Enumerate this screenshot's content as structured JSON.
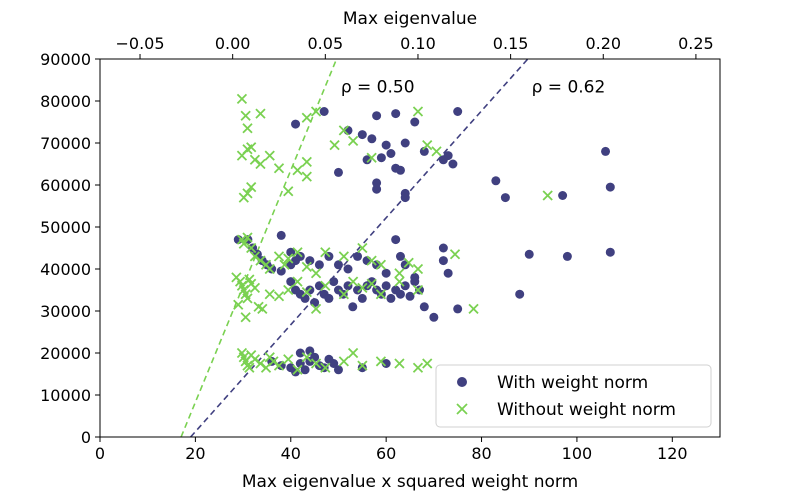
{
  "chart_data": {
    "type": "scatter",
    "xlabel": "Max eigenvalue x squared weight norm",
    "x2label": "Max eigenvalue",
    "ylabel": "",
    "xlim": [
      0,
      130
    ],
    "ylim": [
      0,
      90000
    ],
    "x2lim": [
      -0.0716,
      0.263
    ],
    "x_ticks": [
      0,
      20,
      40,
      60,
      80,
      100,
      120
    ],
    "x_tick_labels": [
      "0",
      "20",
      "40",
      "60",
      "80",
      "100",
      "120"
    ],
    "x2_ticks": [
      -0.05,
      0.0,
      0.05,
      0.1,
      0.15,
      0.2,
      0.25
    ],
    "x2_tick_labels": [
      "−0.05",
      "0.00",
      "0.05",
      "0.10",
      "0.15",
      "0.20",
      "0.25"
    ],
    "y_ticks": [
      0,
      10000,
      20000,
      30000,
      40000,
      50000,
      60000,
      70000,
      80000,
      90000
    ],
    "y_tick_labels": [
      "0",
      "10000",
      "20000",
      "30000",
      "40000",
      "50000",
      "60000",
      "70000",
      "80000",
      "90000"
    ],
    "legend_position": "bottom-right",
    "grid": false,
    "series": [
      {
        "name": "With weight norm",
        "marker": "circle",
        "color": "#404080",
        "axis": "bottom",
        "points": [
          [
            41,
            74500
          ],
          [
            47,
            77500
          ],
          [
            52,
            73000
          ],
          [
            58,
            76500
          ],
          [
            62,
            77000
          ],
          [
            66,
            75000
          ],
          [
            75,
            77500
          ],
          [
            55,
            72000
          ],
          [
            57,
            71000
          ],
          [
            60,
            69500
          ],
          [
            64,
            70000
          ],
          [
            68,
            68000
          ],
          [
            73,
            67000
          ],
          [
            56,
            66000
          ],
          [
            59,
            66500
          ],
          [
            61,
            67500
          ],
          [
            62,
            64000
          ],
          [
            63,
            63500
          ],
          [
            72,
            66000
          ],
          [
            74,
            65000
          ],
          [
            50,
            63000
          ],
          [
            58,
            60500
          ],
          [
            58,
            59000
          ],
          [
            64,
            58000
          ],
          [
            64,
            57000
          ],
          [
            83,
            61000
          ],
          [
            85,
            57000
          ],
          [
            97,
            57500
          ],
          [
            106,
            68000
          ],
          [
            107,
            59500
          ],
          [
            29,
            47000
          ],
          [
            31,
            47000
          ],
          [
            32,
            45000
          ],
          [
            33,
            43500
          ],
          [
            34,
            42000
          ],
          [
            35,
            41000
          ],
          [
            36,
            40000
          ],
          [
            38,
            48000
          ],
          [
            40,
            44000
          ],
          [
            41,
            42000
          ],
          [
            40,
            41000
          ],
          [
            38,
            39500
          ],
          [
            42,
            43000
          ],
          [
            44,
            42000
          ],
          [
            46,
            41000
          ],
          [
            48,
            43000
          ],
          [
            50,
            41000
          ],
          [
            52,
            40000
          ],
          [
            54,
            43000
          ],
          [
            56,
            42000
          ],
          [
            58,
            41000
          ],
          [
            60,
            39000
          ],
          [
            62,
            47000
          ],
          [
            63,
            43000
          ],
          [
            64,
            41000
          ],
          [
            66,
            38000
          ],
          [
            72,
            45000
          ],
          [
            72,
            42000
          ],
          [
            73,
            39000
          ],
          [
            90,
            43500
          ],
          [
            98,
            43000
          ],
          [
            107,
            44000
          ],
          [
            40,
            37000
          ],
          [
            41,
            35000
          ],
          [
            42,
            34000
          ],
          [
            43,
            33000
          ],
          [
            44,
            35000
          ],
          [
            45,
            32000
          ],
          [
            46,
            36000
          ],
          [
            47,
            34000
          ],
          [
            48,
            33000
          ],
          [
            49,
            37000
          ],
          [
            50,
            35000
          ],
          [
            51,
            34000
          ],
          [
            52,
            36000
          ],
          [
            53,
            31000
          ],
          [
            54,
            35000
          ],
          [
            55,
            33000
          ],
          [
            56,
            36000
          ],
          [
            57,
            37000
          ],
          [
            58,
            35000
          ],
          [
            59,
            34000
          ],
          [
            60,
            36000
          ],
          [
            61,
            33000
          ],
          [
            62,
            35000
          ],
          [
            63,
            34000
          ],
          [
            64,
            36000
          ],
          [
            65,
            33500
          ],
          [
            66,
            37000
          ],
          [
            67,
            35000
          ],
          [
            68,
            31000
          ],
          [
            70,
            28500
          ],
          [
            75,
            30500
          ],
          [
            88,
            34000
          ],
          [
            36,
            18000
          ],
          [
            38,
            17000
          ],
          [
            40,
            16500
          ],
          [
            41,
            15500
          ],
          [
            42,
            17500
          ],
          [
            43,
            16000
          ],
          [
            44,
            18000
          ],
          [
            45,
            19000
          ],
          [
            46,
            17000
          ],
          [
            47,
            16500
          ],
          [
            48,
            18500
          ],
          [
            49,
            17500
          ],
          [
            50,
            16000
          ],
          [
            55,
            16500
          ],
          [
            60,
            17500
          ],
          [
            42,
            20000
          ],
          [
            44,
            20500
          ]
        ]
      },
      {
        "name": "Without weight norm",
        "marker": "x",
        "color": "#7ad151",
        "axis": "top",
        "points": [
          [
            0.005,
            80500
          ],
          [
            0.007,
            76500
          ],
          [
            0.008,
            73500
          ],
          [
            0.015,
            77000
          ],
          [
            0.04,
            76000
          ],
          [
            0.045,
            77500
          ],
          [
            0.06,
            73000
          ],
          [
            0.065,
            70500
          ],
          [
            0.055,
            69500
          ],
          [
            0.1,
            77500
          ],
          [
            0.105,
            69500
          ],
          [
            0.11,
            68000
          ],
          [
            0.075,
            66500
          ],
          [
            0.005,
            67000
          ],
          [
            0.008,
            68500
          ],
          [
            0.01,
            69000
          ],
          [
            0.012,
            66000
          ],
          [
            0.015,
            65000
          ],
          [
            0.02,
            67000
          ],
          [
            0.025,
            64000
          ],
          [
            0.04,
            65500
          ],
          [
            0.035,
            63500
          ],
          [
            0.04,
            62000
          ],
          [
            0.03,
            58500
          ],
          [
            0.01,
            59500
          ],
          [
            0.008,
            58000
          ],
          [
            0.006,
            57000
          ],
          [
            0.17,
            57500
          ],
          [
            0.005,
            47000
          ],
          [
            0.006,
            46000
          ],
          [
            0.008,
            47500
          ],
          [
            0.01,
            45000
          ],
          [
            0.012,
            43000
          ],
          [
            0.015,
            42000
          ],
          [
            0.018,
            41000
          ],
          [
            0.02,
            40000
          ],
          [
            0.025,
            43000
          ],
          [
            0.028,
            41000
          ],
          [
            0.03,
            42500
          ],
          [
            0.035,
            44000
          ],
          [
            0.04,
            40500
          ],
          [
            0.045,
            39000
          ],
          [
            0.05,
            44000
          ],
          [
            0.06,
            43000
          ],
          [
            0.07,
            45000
          ],
          [
            0.075,
            42000
          ],
          [
            0.08,
            41000
          ],
          [
            0.09,
            39000
          ],
          [
            0.095,
            41500
          ],
          [
            0.1,
            40000
          ],
          [
            0.12,
            43500
          ],
          [
            0.002,
            38000
          ],
          [
            0.004,
            37000
          ],
          [
            0.005,
            36000
          ],
          [
            0.006,
            35000
          ],
          [
            0.007,
            34000
          ],
          [
            0.008,
            33000
          ],
          [
            0.009,
            37500
          ],
          [
            0.01,
            36500
          ],
          [
            0.012,
            35500
          ],
          [
            0.014,
            31000
          ],
          [
            0.016,
            30500
          ],
          [
            0.02,
            34000
          ],
          [
            0.025,
            33500
          ],
          [
            0.03,
            35000
          ],
          [
            0.035,
            37000
          ],
          [
            0.04,
            34500
          ],
          [
            0.045,
            30500
          ],
          [
            0.05,
            36000
          ],
          [
            0.06,
            34000
          ],
          [
            0.065,
            37000
          ],
          [
            0.07,
            35500
          ],
          [
            0.075,
            36500
          ],
          [
            0.08,
            34000
          ],
          [
            0.09,
            37000
          ],
          [
            0.1,
            35000
          ],
          [
            0.13,
            30500
          ],
          [
            0.007,
            28500
          ],
          [
            0.003,
            31500
          ],
          [
            0.005,
            20000
          ],
          [
            0.006,
            19000
          ],
          [
            0.007,
            18000
          ],
          [
            0.008,
            17000
          ],
          [
            0.009,
            16500
          ],
          [
            0.01,
            19500
          ],
          [
            0.012,
            18500
          ],
          [
            0.015,
            17500
          ],
          [
            0.018,
            16500
          ],
          [
            0.02,
            19000
          ],
          [
            0.022,
            18000
          ],
          [
            0.025,
            17000
          ],
          [
            0.03,
            18500
          ],
          [
            0.035,
            16000
          ],
          [
            0.04,
            19000
          ],
          [
            0.045,
            17500
          ],
          [
            0.05,
            16500
          ],
          [
            0.06,
            18000
          ],
          [
            0.065,
            20000
          ],
          [
            0.07,
            17000
          ],
          [
            0.08,
            18000
          ],
          [
            0.09,
            17500
          ],
          [
            0.1,
            16500
          ],
          [
            0.105,
            17500
          ]
        ]
      }
    ],
    "fit_lines": [
      {
        "color": "#7ad151",
        "axis": "bottom",
        "points": [
          [
            17,
            0
          ],
          [
            49.6,
            90000
          ]
        ]
      },
      {
        "color": "#404080",
        "axis": "bottom",
        "points": [
          [
            19,
            0
          ],
          [
            89.7,
            90000
          ]
        ]
      }
    ],
    "annotations": [
      {
        "text": "ρ = 0.50",
        "x": 50.5,
        "y": 83500
      },
      {
        "text": "ρ = 0.62",
        "x": 90.5,
        "y": 83500
      }
    ]
  }
}
